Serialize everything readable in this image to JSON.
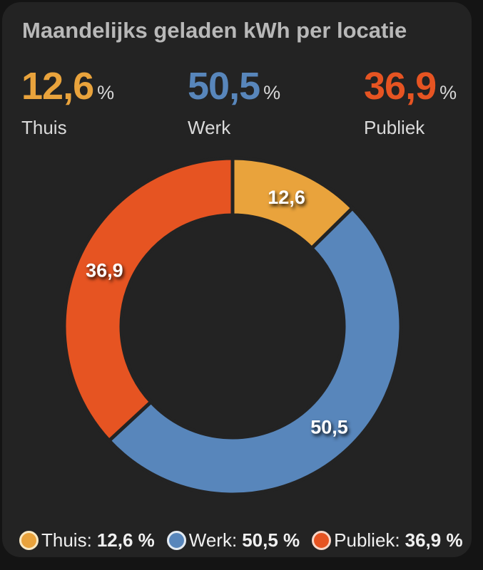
{
  "title": "Maandelijks geladen kWh per locatie",
  "colors": {
    "page_bg": "#141414",
    "card_bg": "#232323",
    "title_text": "#B8B8B8",
    "label_text": "#DADADA",
    "unit_text": "#D8D8D8",
    "slice_label_text": "#FFFFFF",
    "legend_text": "#F0F0F0"
  },
  "stats": [
    {
      "value": "12,6",
      "unit": "%",
      "label": "Thuis",
      "color": "#E9A33C"
    },
    {
      "value": "50,5",
      "unit": "%",
      "label": "Werk",
      "color": "#5886BB"
    },
    {
      "value": "36,9",
      "unit": "%",
      "label": "Publiek",
      "color": "#E65422"
    }
  ],
  "legend": {
    "items": [
      {
        "label": "Thuis:",
        "value": "12,6 %",
        "color": "#E9A33C",
        "ring_color": "#F8E8C2"
      },
      {
        "label": "Werk:",
        "value": "50,5 %",
        "color": "#5886BB",
        "ring_color": "#E3EAF1"
      },
      {
        "label": "Publiek:",
        "value": "36,9 %",
        "color": "#E65422",
        "ring_color": "#F7D6C8"
      }
    ]
  },
  "chart_data": {
    "type": "pie",
    "subtype": "donut",
    "title": "Maandelijks geladen kWh per locatie",
    "categories": [
      "Thuis",
      "Werk",
      "Publiek"
    ],
    "values": [
      12.6,
      50.5,
      36.9
    ],
    "value_labels": [
      "12,6",
      "50,5",
      "36,9"
    ],
    "unit": "%",
    "colors": [
      "#E9A33C",
      "#5886BB",
      "#E65422"
    ],
    "start_angle": "top",
    "direction": "clockwise",
    "outer_radius_px": 236,
    "inner_radius_px": 156,
    "label_radius_px": 196,
    "inner_radius_ratio": 0.66,
    "legend_position": "bottom"
  }
}
